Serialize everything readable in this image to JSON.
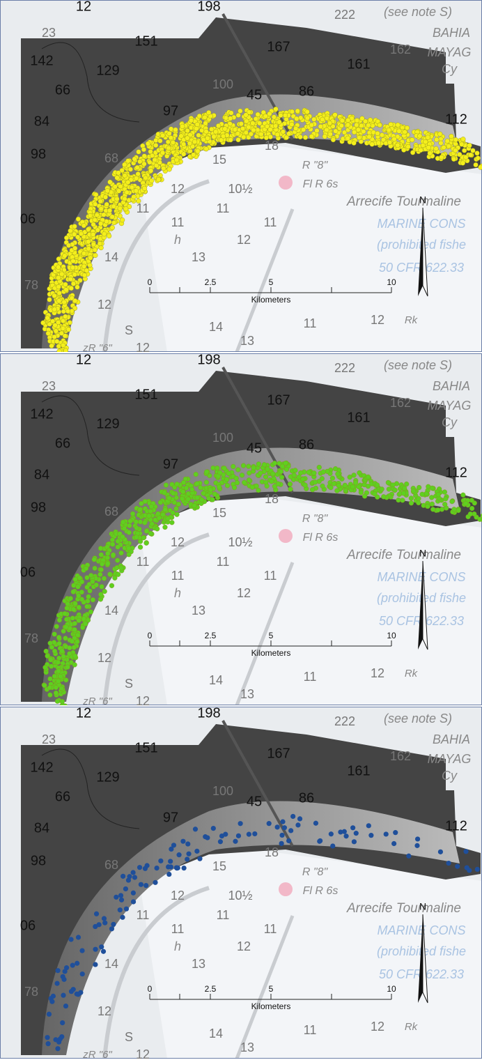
{
  "chart_labels": [
    "12",
    "198",
    "222",
    "(see note S)",
    "23",
    "151",
    "142",
    "129",
    "167",
    "162",
    "BAHIA",
    "MAYAG",
    "Cy",
    "161",
    "66",
    "100",
    "45",
    "86",
    "84",
    "97",
    "112",
    "98",
    "68",
    "15",
    "18",
    "R \"8\"",
    "12",
    "10½",
    "Fl R 6s",
    "Arrecife Tourmaline",
    "06",
    "11",
    "11",
    "11",
    "11",
    "MARINE CONS",
    "h",
    "12",
    "(prohibited fishe",
    "13",
    "78",
    "14",
    "50 CFR 622.33",
    "12",
    "14",
    "13",
    "11",
    "12",
    "Rk",
    "S",
    "zR \"6\"",
    "12"
  ],
  "scale_bar": {
    "ticks": [
      "0",
      "2.5",
      "5",
      "10"
    ],
    "unit": "Kilometers"
  },
  "north_arrow": "N",
  "panels": [
    {
      "dot_color": "#f4ef1c"
    },
    {
      "dot_color": "#5fd01f"
    },
    {
      "dot_color": "#1f4f9a"
    }
  ]
}
